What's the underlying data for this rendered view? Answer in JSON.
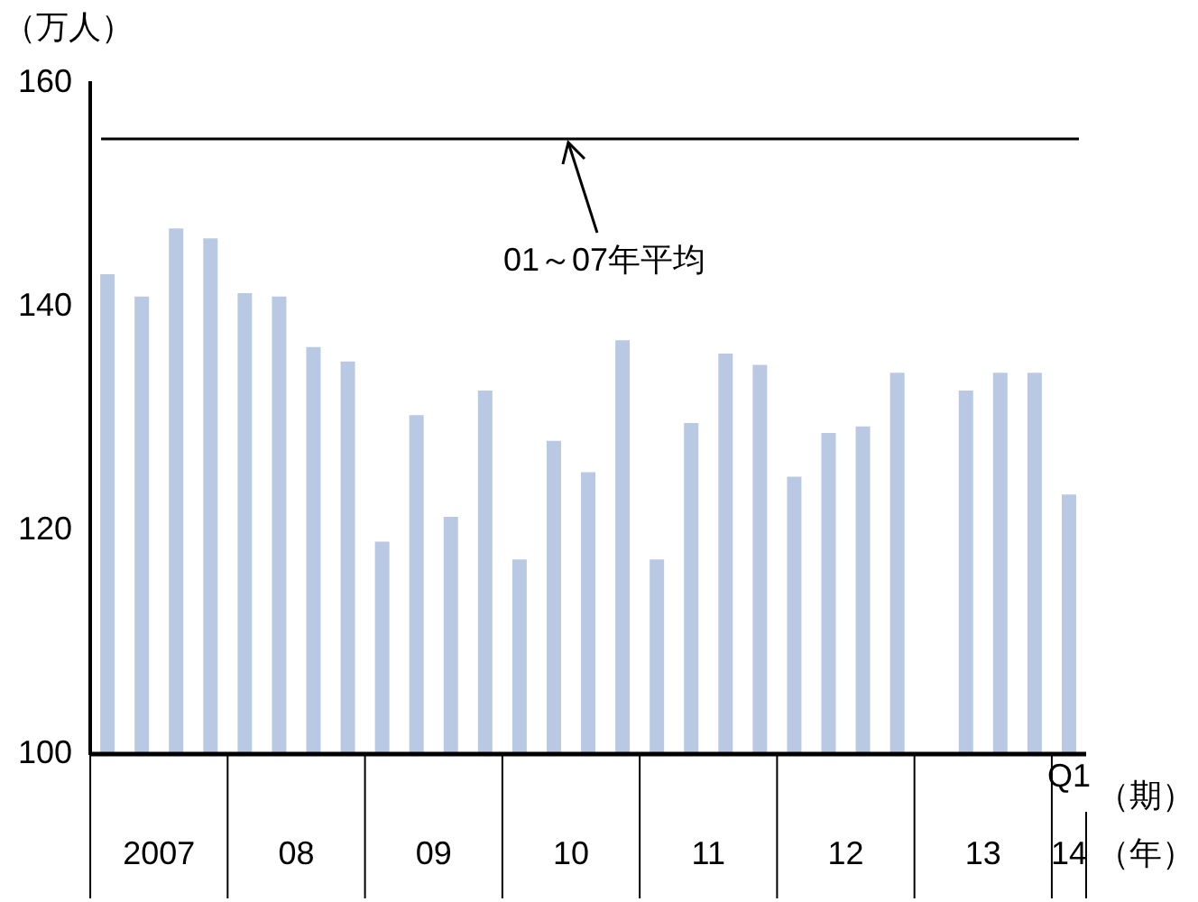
{
  "chart_data": {
    "type": "bar",
    "ylabel": "（万人）",
    "xlabel": "（期）",
    "categories": [
      null,
      null,
      null,
      null,
      null,
      null,
      null,
      null,
      null,
      null,
      null,
      null,
      null,
      null,
      null,
      null,
      null,
      null,
      null,
      null,
      null,
      null,
      null,
      null,
      null,
      null,
      null,
      null,
      "Q1"
    ],
    "values": [
      142.9,
      140.9,
      147.0,
      146.1,
      141.2,
      140.9,
      136.4,
      135.1,
      119.0,
      130.3,
      121.2,
      132.5,
      117.4,
      128.0,
      125.2,
      137.0,
      117.4,
      129.6,
      135.8,
      134.8,
      124.8,
      128.7,
      129.3,
      134.1,
      null,
      132.5,
      134.1,
      134.1,
      123.2
    ],
    "color": "#b9c9e4",
    "ylim": [
      100,
      160
    ],
    "yticks": [
      100,
      120,
      140,
      160
    ],
    "grid": false,
    "ref_lines": [
      {
        "axis": "y",
        "value": 155,
        "label": "01～07年平均",
        "color": "#000000"
      }
    ],
    "annotations": [
      "2007",
      "08",
      "09",
      "10",
      "11",
      "12",
      "13",
      "14",
      "（年）"
    ]
  }
}
